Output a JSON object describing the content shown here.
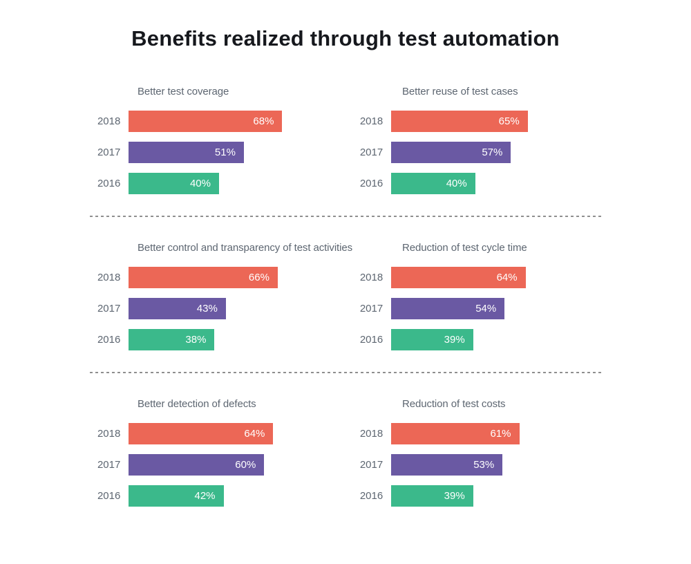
{
  "chart_data": {
    "type": "bar",
    "orientation": "horizontal",
    "title": "Benefits realized through test automation",
    "unit": "%",
    "xlim": [
      0,
      100
    ],
    "grid": false,
    "legend": "none",
    "categories": [
      "2018",
      "2017",
      "2016"
    ],
    "series_colors": {
      "y2018": "#EC6756",
      "y2017": "#6A59A3",
      "y2016": "#3BB98B"
    },
    "charts": [
      {
        "title": "Better test coverage",
        "bars": [
          {
            "year": "2018",
            "value": 68,
            "label": "68%"
          },
          {
            "year": "2017",
            "value": 51,
            "label": "51%"
          },
          {
            "year": "2016",
            "value": 40,
            "label": "40%"
          }
        ]
      },
      {
        "title": "Better reuse of test cases",
        "bars": [
          {
            "year": "2018",
            "value": 65,
            "label": "65%"
          },
          {
            "year": "2017",
            "value": 57,
            "label": "57%"
          },
          {
            "year": "2016",
            "value": 40,
            "label": "40%"
          }
        ]
      },
      {
        "title": "Better control and transparency of test activities",
        "bars": [
          {
            "year": "2018",
            "value": 66,
            "label": "66%"
          },
          {
            "year": "2017",
            "value": 43,
            "label": "43%"
          },
          {
            "year": "2016",
            "value": 38,
            "label": "38%"
          }
        ]
      },
      {
        "title": "Reduction of test cycle time",
        "bars": [
          {
            "year": "2018",
            "value": 64,
            "label": "64%"
          },
          {
            "year": "2017",
            "value": 54,
            "label": "54%"
          },
          {
            "year": "2016",
            "value": 39,
            "label": "39%"
          }
        ]
      },
      {
        "title": "Better detection of defects",
        "bars": [
          {
            "year": "2018",
            "value": 64,
            "label": "64%"
          },
          {
            "year": "2017",
            "value": 60,
            "label": "60%"
          },
          {
            "year": "2016",
            "value": 42,
            "label": "42%"
          }
        ]
      },
      {
        "title": "Reduction of test costs",
        "bars": [
          {
            "year": "2018",
            "value": 61,
            "label": "61%"
          },
          {
            "year": "2017",
            "value": 53,
            "label": "53%"
          },
          {
            "year": "2016",
            "value": 39,
            "label": "39%"
          }
        ]
      }
    ]
  },
  "theme": {
    "background": "#FFFFFF",
    "title_color": "#16181D",
    "label_color": "#5D6671",
    "value_label_color": "#FFFFFF",
    "divider_color": "#8F8F8F"
  }
}
